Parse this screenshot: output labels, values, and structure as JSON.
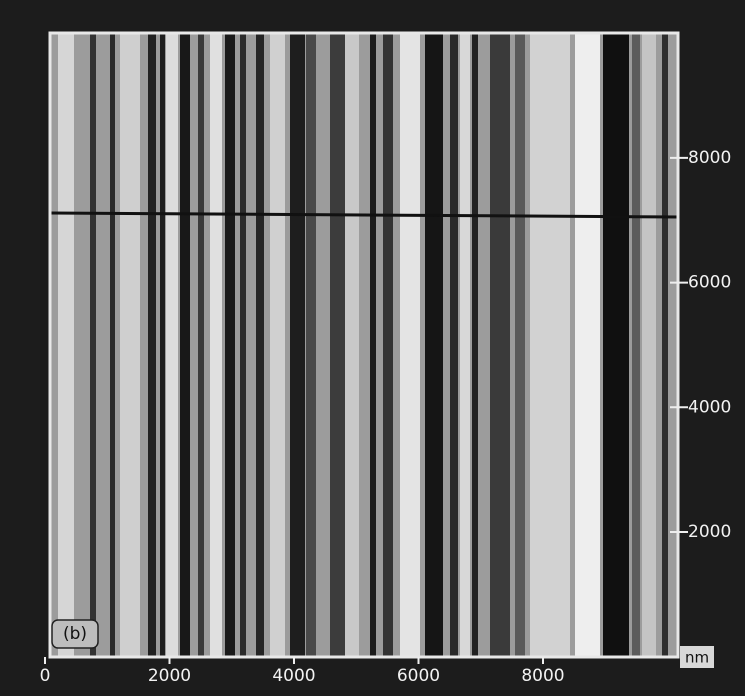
{
  "panel_label": "(b)",
  "unit": "nm",
  "x_ticks": [
    0,
    2000,
    4000,
    6000,
    8000
  ],
  "y_ticks": [
    2000,
    4000,
    6000,
    8000
  ]
}
